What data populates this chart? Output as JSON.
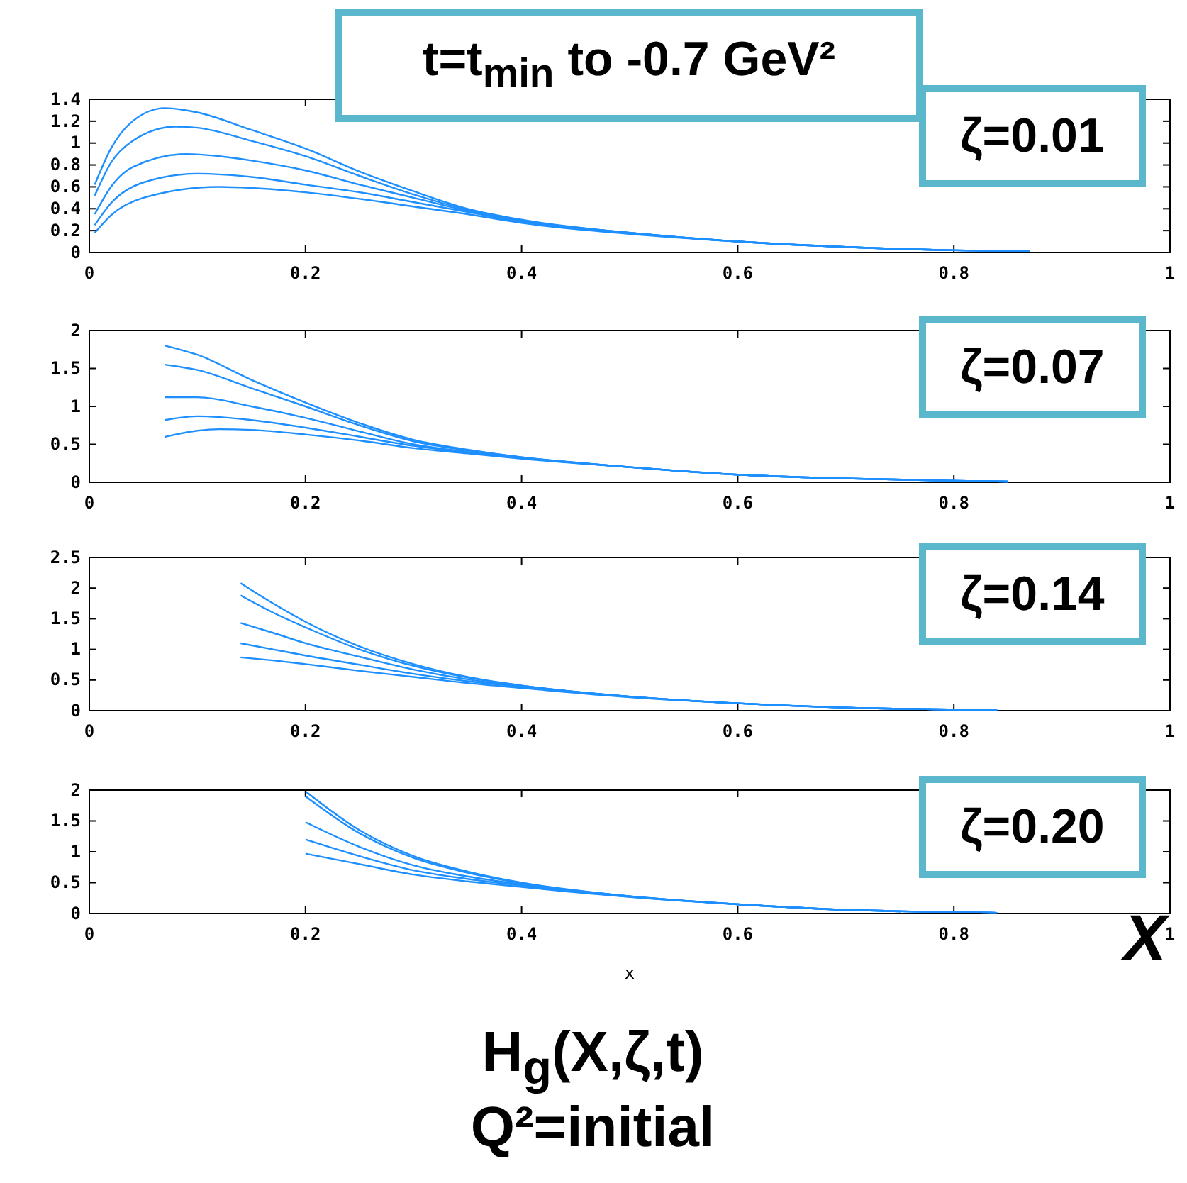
{
  "chart_data": [
    {
      "type": "line",
      "title": "t=t$_{min}$ to -0.7 GeV²",
      "annotations": [
        "ζ=0.01"
      ],
      "xlim": [
        0,
        1
      ],
      "xticks": [
        0,
        0.2,
        0.4,
        0.6,
        0.8,
        1
      ],
      "ylim": [
        0,
        1.4
      ],
      "yticks": [
        0,
        0.2,
        0.4,
        0.6,
        0.8,
        1,
        1.2,
        1.4
      ],
      "series": [
        {
          "color": "#1e8fff",
          "x": [
            0.005,
            0.02,
            0.04,
            0.07,
            0.1,
            0.15,
            0.2,
            0.25,
            0.3,
            0.35,
            0.4,
            0.5,
            0.6,
            0.7,
            0.8,
            0.87
          ],
          "values": [
            0.62,
            0.95,
            1.2,
            1.32,
            1.28,
            1.12,
            0.95,
            0.74,
            0.56,
            0.4,
            0.3,
            0.18,
            0.1,
            0.05,
            0.02,
            0.01
          ]
        },
        {
          "color": "#1e8fff",
          "x": [
            0.005,
            0.02,
            0.04,
            0.08,
            0.1,
            0.15,
            0.2,
            0.25,
            0.3,
            0.35,
            0.4,
            0.5,
            0.6,
            0.7,
            0.8,
            0.87
          ],
          "values": [
            0.52,
            0.82,
            1.02,
            1.15,
            1.14,
            1.02,
            0.88,
            0.7,
            0.53,
            0.39,
            0.29,
            0.18,
            0.1,
            0.05,
            0.02,
            0.01
          ]
        },
        {
          "color": "#1e8fff",
          "x": [
            0.005,
            0.02,
            0.04,
            0.09,
            0.12,
            0.15,
            0.2,
            0.25,
            0.3,
            0.35,
            0.4,
            0.5,
            0.6,
            0.7,
            0.8,
            0.87
          ],
          "values": [
            0.35,
            0.6,
            0.78,
            0.9,
            0.88,
            0.84,
            0.75,
            0.62,
            0.5,
            0.38,
            0.29,
            0.18,
            0.1,
            0.05,
            0.02,
            0.01
          ]
        },
        {
          "color": "#1e8fff",
          "x": [
            0.005,
            0.02,
            0.05,
            0.1,
            0.15,
            0.2,
            0.25,
            0.3,
            0.35,
            0.4,
            0.5,
            0.6,
            0.7,
            0.8,
            0.87
          ],
          "values": [
            0.25,
            0.45,
            0.64,
            0.72,
            0.69,
            0.62,
            0.55,
            0.46,
            0.37,
            0.28,
            0.18,
            0.1,
            0.05,
            0.02,
            0.01
          ]
        },
        {
          "color": "#1e8fff",
          "x": [
            0.005,
            0.02,
            0.05,
            0.12,
            0.15,
            0.2,
            0.25,
            0.3,
            0.35,
            0.4,
            0.5,
            0.6,
            0.7,
            0.8,
            0.87
          ],
          "values": [
            0.18,
            0.34,
            0.5,
            0.6,
            0.59,
            0.55,
            0.49,
            0.42,
            0.35,
            0.27,
            0.17,
            0.1,
            0.05,
            0.02,
            0.01
          ]
        }
      ]
    },
    {
      "type": "line",
      "annotations": [
        "ζ=0.07"
      ],
      "xlim": [
        0,
        1
      ],
      "xticks": [
        0,
        0.2,
        0.4,
        0.6,
        0.8,
        1
      ],
      "ylim": [
        0,
        2
      ],
      "yticks": [
        0,
        0.5,
        1,
        1.5,
        2
      ],
      "series": [
        {
          "color": "#1e8fff",
          "x": [
            0.07,
            0.1,
            0.15,
            0.2,
            0.25,
            0.3,
            0.35,
            0.4,
            0.5,
            0.6,
            0.7,
            0.8,
            0.85
          ],
          "values": [
            1.8,
            1.68,
            1.35,
            1.05,
            0.78,
            0.56,
            0.43,
            0.33,
            0.2,
            0.1,
            0.05,
            0.02,
            0.01
          ]
        },
        {
          "color": "#1e8fff",
          "x": [
            0.07,
            0.1,
            0.15,
            0.2,
            0.25,
            0.3,
            0.35,
            0.4,
            0.5,
            0.6,
            0.7,
            0.8,
            0.85
          ],
          "values": [
            1.55,
            1.48,
            1.24,
            1.0,
            0.75,
            0.54,
            0.42,
            0.33,
            0.2,
            0.1,
            0.05,
            0.02,
            0.01
          ]
        },
        {
          "color": "#1e8fff",
          "x": [
            0.07,
            0.1,
            0.15,
            0.2,
            0.25,
            0.3,
            0.35,
            0.4,
            0.5,
            0.6,
            0.7,
            0.8,
            0.85
          ],
          "values": [
            1.12,
            1.12,
            1.0,
            0.85,
            0.67,
            0.5,
            0.4,
            0.32,
            0.2,
            0.1,
            0.05,
            0.02,
            0.01
          ]
        },
        {
          "color": "#1e8fff",
          "x": [
            0.07,
            0.1,
            0.15,
            0.2,
            0.25,
            0.3,
            0.35,
            0.4,
            0.5,
            0.6,
            0.7,
            0.8,
            0.85
          ],
          "values": [
            0.82,
            0.87,
            0.82,
            0.72,
            0.6,
            0.48,
            0.39,
            0.32,
            0.2,
            0.1,
            0.05,
            0.02,
            0.01
          ]
        },
        {
          "color": "#1e8fff",
          "x": [
            0.07,
            0.1,
            0.12,
            0.15,
            0.2,
            0.25,
            0.3,
            0.35,
            0.4,
            0.5,
            0.6,
            0.7,
            0.8,
            0.85
          ],
          "values": [
            0.6,
            0.68,
            0.7,
            0.69,
            0.63,
            0.55,
            0.45,
            0.38,
            0.31,
            0.2,
            0.1,
            0.05,
            0.02,
            0.01
          ]
        }
      ]
    },
    {
      "type": "line",
      "annotations": [
        "ζ=0.14"
      ],
      "xlim": [
        0,
        1
      ],
      "xticks": [
        0,
        0.2,
        0.4,
        0.6,
        0.8,
        1
      ],
      "ylim": [
        0,
        2.5
      ],
      "yticks": [
        0,
        0.5,
        1,
        1.5,
        2,
        2.5
      ],
      "series": [
        {
          "color": "#1e8fff",
          "x": [
            0.14,
            0.17,
            0.2,
            0.25,
            0.3,
            0.35,
            0.4,
            0.5,
            0.6,
            0.7,
            0.8,
            0.84
          ],
          "values": [
            2.08,
            1.75,
            1.45,
            1.05,
            0.76,
            0.55,
            0.41,
            0.23,
            0.12,
            0.05,
            0.02,
            0.01
          ]
        },
        {
          "color": "#1e8fff",
          "x": [
            0.14,
            0.17,
            0.2,
            0.25,
            0.3,
            0.35,
            0.4,
            0.5,
            0.6,
            0.7,
            0.8,
            0.84
          ],
          "values": [
            1.88,
            1.6,
            1.36,
            1.0,
            0.73,
            0.54,
            0.41,
            0.23,
            0.12,
            0.05,
            0.02,
            0.01
          ]
        },
        {
          "color": "#1e8fff",
          "x": [
            0.14,
            0.17,
            0.2,
            0.25,
            0.3,
            0.35,
            0.4,
            0.5,
            0.6,
            0.7,
            0.8,
            0.84
          ],
          "values": [
            1.43,
            1.27,
            1.1,
            0.88,
            0.67,
            0.51,
            0.4,
            0.23,
            0.12,
            0.05,
            0.02,
            0.01
          ]
        },
        {
          "color": "#1e8fff",
          "x": [
            0.14,
            0.17,
            0.2,
            0.25,
            0.3,
            0.35,
            0.4,
            0.5,
            0.6,
            0.7,
            0.8,
            0.84
          ],
          "values": [
            1.1,
            1.0,
            0.9,
            0.75,
            0.6,
            0.48,
            0.39,
            0.23,
            0.12,
            0.05,
            0.02,
            0.01
          ]
        },
        {
          "color": "#1e8fff",
          "x": [
            0.14,
            0.17,
            0.2,
            0.25,
            0.3,
            0.35,
            0.4,
            0.5,
            0.6,
            0.7,
            0.8,
            0.84
          ],
          "values": [
            0.87,
            0.82,
            0.76,
            0.65,
            0.55,
            0.45,
            0.37,
            0.22,
            0.12,
            0.05,
            0.02,
            0.01
          ]
        }
      ]
    },
    {
      "type": "line",
      "xlabel": "x",
      "annotations": [
        "ζ=0.20",
        "X",
        "H$_{g}$(X,ζ,t)",
        "Q²=initial"
      ],
      "xlim": [
        0,
        1
      ],
      "xticks": [
        0,
        0.2,
        0.4,
        0.6,
        0.8,
        1
      ],
      "ylim": [
        0,
        2
      ],
      "yticks": [
        0,
        0.5,
        1,
        1.5,
        2
      ],
      "series": [
        {
          "color": "#1e8fff",
          "x": [
            0.2,
            0.25,
            0.3,
            0.35,
            0.4,
            0.5,
            0.6,
            0.7,
            0.8,
            0.84
          ],
          "values": [
            1.98,
            1.35,
            0.93,
            0.68,
            0.5,
            0.28,
            0.15,
            0.06,
            0.02,
            0.01
          ]
        },
        {
          "color": "#1e8fff",
          "x": [
            0.2,
            0.25,
            0.3,
            0.35,
            0.4,
            0.5,
            0.6,
            0.7,
            0.8,
            0.84
          ],
          "values": [
            1.9,
            1.3,
            0.9,
            0.66,
            0.49,
            0.28,
            0.15,
            0.06,
            0.02,
            0.01
          ]
        },
        {
          "color": "#1e8fff",
          "x": [
            0.2,
            0.25,
            0.3,
            0.35,
            0.4,
            0.5,
            0.6,
            0.7,
            0.8,
            0.84
          ],
          "values": [
            1.48,
            1.08,
            0.78,
            0.6,
            0.47,
            0.28,
            0.15,
            0.06,
            0.02,
            0.01
          ]
        },
        {
          "color": "#1e8fff",
          "x": [
            0.2,
            0.25,
            0.3,
            0.35,
            0.4,
            0.5,
            0.6,
            0.7,
            0.8,
            0.84
          ],
          "values": [
            1.2,
            0.93,
            0.7,
            0.56,
            0.45,
            0.27,
            0.15,
            0.06,
            0.02,
            0.01
          ]
        },
        {
          "color": "#1e8fff",
          "x": [
            0.2,
            0.25,
            0.3,
            0.35,
            0.4,
            0.5,
            0.6,
            0.7,
            0.8,
            0.84
          ],
          "values": [
            0.97,
            0.8,
            0.63,
            0.52,
            0.43,
            0.27,
            0.15,
            0.06,
            0.02,
            0.01
          ]
        }
      ]
    }
  ]
}
